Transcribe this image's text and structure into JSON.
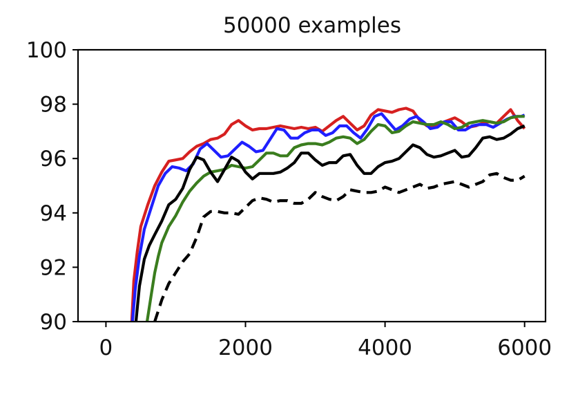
{
  "chart_data": {
    "type": "line",
    "title": "50000 examples",
    "xlabel": "",
    "ylabel": "",
    "xlim": [
      -400,
      6300
    ],
    "ylim": [
      90,
      100
    ],
    "xticks": [
      0,
      2000,
      4000,
      6000
    ],
    "xtick_labels": [
      "0",
      "2000",
      "4000",
      "6000"
    ],
    "yticks": [
      90,
      92,
      94,
      96,
      98,
      100
    ],
    "ytick_labels": [
      "90",
      "92",
      "94",
      "96",
      "98",
      "100"
    ],
    "grid": false,
    "series": [
      {
        "name": "red",
        "color": "#d62020",
        "dash": "solid",
        "points": [
          [
            370,
            90
          ],
          [
            400,
            91.5
          ],
          [
            450,
            92.6
          ],
          [
            500,
            93.5
          ],
          [
            600,
            94.3
          ],
          [
            700,
            95
          ],
          [
            800,
            95.5
          ],
          [
            900,
            95.9
          ],
          [
            1000,
            95.95
          ],
          [
            1100,
            96
          ],
          [
            1200,
            96.25
          ],
          [
            1300,
            96.45
          ],
          [
            1400,
            96.55
          ],
          [
            1500,
            96.7
          ],
          [
            1600,
            96.75
          ],
          [
            1700,
            96.9
          ],
          [
            1800,
            97.25
          ],
          [
            1900,
            97.4
          ],
          [
            2000,
            97.2
          ],
          [
            2100,
            97.05
          ],
          [
            2200,
            97.1
          ],
          [
            2300,
            97.1
          ],
          [
            2400,
            97.15
          ],
          [
            2500,
            97.2
          ],
          [
            2600,
            97.15
          ],
          [
            2700,
            97.1
          ],
          [
            2800,
            97.15
          ],
          [
            2900,
            97.1
          ],
          [
            3000,
            97.15
          ],
          [
            3100,
            97.0
          ],
          [
            3200,
            97.2
          ],
          [
            3300,
            97.4
          ],
          [
            3400,
            97.55
          ],
          [
            3500,
            97.3
          ],
          [
            3600,
            97.05
          ],
          [
            3700,
            97.2
          ],
          [
            3800,
            97.6
          ],
          [
            3900,
            97.8
          ],
          [
            4000,
            97.75
          ],
          [
            4100,
            97.7
          ],
          [
            4200,
            97.8
          ],
          [
            4300,
            97.85
          ],
          [
            4400,
            97.75
          ],
          [
            4500,
            97.4
          ],
          [
            4600,
            97.2
          ],
          [
            4700,
            97.15
          ],
          [
            4800,
            97.3
          ],
          [
            4900,
            97.4
          ],
          [
            5000,
            97.5
          ],
          [
            5100,
            97.35
          ],
          [
            5200,
            97.15
          ],
          [
            5300,
            97.2
          ],
          [
            5400,
            97.3
          ],
          [
            5500,
            97.35
          ],
          [
            5600,
            97.3
          ],
          [
            5700,
            97.55
          ],
          [
            5800,
            97.8
          ],
          [
            5900,
            97.4
          ],
          [
            6000,
            97.1
          ]
        ]
      },
      {
        "name": "blue",
        "color": "#1f1fff",
        "dash": "solid",
        "points": [
          [
            380,
            90
          ],
          [
            420,
            91.2
          ],
          [
            480,
            92.4
          ],
          [
            550,
            93.4
          ],
          [
            650,
            94.2
          ],
          [
            750,
            95
          ],
          [
            850,
            95.45
          ],
          [
            950,
            95.7
          ],
          [
            1050,
            95.65
          ],
          [
            1150,
            95.55
          ],
          [
            1250,
            95.8
          ],
          [
            1350,
            96.35
          ],
          [
            1450,
            96.55
          ],
          [
            1550,
            96.3
          ],
          [
            1650,
            96.05
          ],
          [
            1750,
            96.1
          ],
          [
            1850,
            96.35
          ],
          [
            1950,
            96.6
          ],
          [
            2050,
            96.45
          ],
          [
            2150,
            96.25
          ],
          [
            2250,
            96.3
          ],
          [
            2350,
            96.7
          ],
          [
            2450,
            97.1
          ],
          [
            2550,
            97.05
          ],
          [
            2650,
            96.75
          ],
          [
            2750,
            96.75
          ],
          [
            2850,
            96.95
          ],
          [
            2950,
            97.05
          ],
          [
            3050,
            97.05
          ],
          [
            3150,
            96.85
          ],
          [
            3250,
            96.95
          ],
          [
            3350,
            97.2
          ],
          [
            3450,
            97.2
          ],
          [
            3550,
            96.95
          ],
          [
            3650,
            96.75
          ],
          [
            3750,
            97.1
          ],
          [
            3850,
            97.55
          ],
          [
            3950,
            97.65
          ],
          [
            4050,
            97.35
          ],
          [
            4150,
            97.05
          ],
          [
            4250,
            97.2
          ],
          [
            4350,
            97.45
          ],
          [
            4450,
            97.55
          ],
          [
            4550,
            97.35
          ],
          [
            4650,
            97.1
          ],
          [
            4750,
            97.15
          ],
          [
            4850,
            97.35
          ],
          [
            4950,
            97.35
          ],
          [
            5050,
            97.05
          ],
          [
            5150,
            97.05
          ],
          [
            5250,
            97.2
          ],
          [
            5350,
            97.25
          ],
          [
            5450,
            97.25
          ],
          [
            5550,
            97.15
          ],
          [
            5650,
            97.3
          ],
          [
            5750,
            97.45
          ],
          [
            5850,
            97.55
          ],
          [
            5950,
            97.55
          ],
          [
            6000,
            97.6
          ]
        ]
      },
      {
        "name": "green",
        "color": "#3a7d1e",
        "dash": "solid",
        "points": [
          [
            590,
            90
          ],
          [
            650,
            91
          ],
          [
            700,
            91.8
          ],
          [
            750,
            92.4
          ],
          [
            800,
            92.9
          ],
          [
            900,
            93.5
          ],
          [
            1000,
            93.9
          ],
          [
            1100,
            94.4
          ],
          [
            1200,
            94.8
          ],
          [
            1300,
            95.1
          ],
          [
            1400,
            95.35
          ],
          [
            1500,
            95.5
          ],
          [
            1600,
            95.55
          ],
          [
            1700,
            95.6
          ],
          [
            1800,
            95.75
          ],
          [
            1900,
            95.7
          ],
          [
            2000,
            95.65
          ],
          [
            2100,
            95.7
          ],
          [
            2200,
            95.95
          ],
          [
            2300,
            96.2
          ],
          [
            2400,
            96.2
          ],
          [
            2500,
            96.1
          ],
          [
            2600,
            96.1
          ],
          [
            2700,
            96.4
          ],
          [
            2800,
            96.5
          ],
          [
            2900,
            96.55
          ],
          [
            3000,
            96.55
          ],
          [
            3100,
            96.5
          ],
          [
            3200,
            96.6
          ],
          [
            3300,
            96.75
          ],
          [
            3400,
            96.8
          ],
          [
            3500,
            96.75
          ],
          [
            3600,
            96.55
          ],
          [
            3700,
            96.7
          ],
          [
            3800,
            97.0
          ],
          [
            3900,
            97.25
          ],
          [
            4000,
            97.2
          ],
          [
            4100,
            96.95
          ],
          [
            4200,
            97.0
          ],
          [
            4300,
            97.2
          ],
          [
            4400,
            97.35
          ],
          [
            4500,
            97.3
          ],
          [
            4600,
            97.25
          ],
          [
            4700,
            97.25
          ],
          [
            4800,
            97.35
          ],
          [
            4900,
            97.25
          ],
          [
            5000,
            97.1
          ],
          [
            5100,
            97.15
          ],
          [
            5200,
            97.3
          ],
          [
            5300,
            97.35
          ],
          [
            5400,
            97.4
          ],
          [
            5500,
            97.35
          ],
          [
            5600,
            97.3
          ],
          [
            5700,
            97.35
          ],
          [
            5800,
            97.5
          ],
          [
            5900,
            97.55
          ],
          [
            6000,
            97.55
          ]
        ]
      },
      {
        "name": "black",
        "color": "#000000",
        "dash": "solid",
        "points": [
          [
            430,
            90
          ],
          [
            480,
            91.3
          ],
          [
            550,
            92.3
          ],
          [
            620,
            92.8
          ],
          [
            700,
            93.2
          ],
          [
            800,
            93.7
          ],
          [
            900,
            94.3
          ],
          [
            1000,
            94.5
          ],
          [
            1100,
            94.9
          ],
          [
            1200,
            95.6
          ],
          [
            1300,
            96.05
          ],
          [
            1400,
            95.95
          ],
          [
            1500,
            95.5
          ],
          [
            1600,
            95.15
          ],
          [
            1700,
            95.6
          ],
          [
            1800,
            96.05
          ],
          [
            1900,
            95.9
          ],
          [
            2000,
            95.5
          ],
          [
            2100,
            95.25
          ],
          [
            2200,
            95.45
          ],
          [
            2300,
            95.45
          ],
          [
            2400,
            95.45
          ],
          [
            2500,
            95.5
          ],
          [
            2600,
            95.65
          ],
          [
            2700,
            95.85
          ],
          [
            2800,
            96.2
          ],
          [
            2900,
            96.2
          ],
          [
            3000,
            95.95
          ],
          [
            3100,
            95.75
          ],
          [
            3200,
            95.85
          ],
          [
            3300,
            95.85
          ],
          [
            3400,
            96.1
          ],
          [
            3500,
            96.15
          ],
          [
            3600,
            95.75
          ],
          [
            3700,
            95.45
          ],
          [
            3800,
            95.45
          ],
          [
            3900,
            95.7
          ],
          [
            4000,
            95.85
          ],
          [
            4100,
            95.9
          ],
          [
            4200,
            96.0
          ],
          [
            4300,
            96.25
          ],
          [
            4400,
            96.5
          ],
          [
            4500,
            96.4
          ],
          [
            4600,
            96.15
          ],
          [
            4700,
            96.05
          ],
          [
            4800,
            96.1
          ],
          [
            4900,
            96.2
          ],
          [
            5000,
            96.3
          ],
          [
            5100,
            96.05
          ],
          [
            5200,
            96.1
          ],
          [
            5300,
            96.4
          ],
          [
            5400,
            96.75
          ],
          [
            5500,
            96.8
          ],
          [
            5600,
            96.7
          ],
          [
            5700,
            96.75
          ],
          [
            5800,
            96.9
          ],
          [
            5900,
            97.1
          ],
          [
            6000,
            97.2
          ]
        ]
      },
      {
        "name": "black-dashed",
        "color": "#000000",
        "dash": "dashed",
        "points": [
          [
            700,
            90
          ],
          [
            800,
            90.8
          ],
          [
            900,
            91.4
          ],
          [
            1000,
            91.8
          ],
          [
            1100,
            92.2
          ],
          [
            1200,
            92.5
          ],
          [
            1300,
            93.1
          ],
          [
            1400,
            93.85
          ],
          [
            1500,
            94.05
          ],
          [
            1600,
            94.05
          ],
          [
            1700,
            94.0
          ],
          [
            1800,
            94.0
          ],
          [
            1900,
            93.95
          ],
          [
            2000,
            94.2
          ],
          [
            2100,
            94.45
          ],
          [
            2200,
            94.55
          ],
          [
            2300,
            94.5
          ],
          [
            2400,
            94.4
          ],
          [
            2500,
            94.45
          ],
          [
            2600,
            94.45
          ],
          [
            2700,
            94.35
          ],
          [
            2800,
            94.35
          ],
          [
            2900,
            94.5
          ],
          [
            3000,
            94.75
          ],
          [
            3100,
            94.6
          ],
          [
            3200,
            94.5
          ],
          [
            3300,
            94.45
          ],
          [
            3400,
            94.6
          ],
          [
            3500,
            94.85
          ],
          [
            3600,
            94.8
          ],
          [
            3700,
            94.75
          ],
          [
            3800,
            94.75
          ],
          [
            3900,
            94.8
          ],
          [
            4000,
            94.95
          ],
          [
            4100,
            94.85
          ],
          [
            4200,
            94.75
          ],
          [
            4300,
            94.85
          ],
          [
            4400,
            94.95
          ],
          [
            4500,
            95.05
          ],
          [
            4600,
            94.9
          ],
          [
            4700,
            94.95
          ],
          [
            4800,
            95.05
          ],
          [
            4900,
            95.1
          ],
          [
            5000,
            95.15
          ],
          [
            5100,
            95.05
          ],
          [
            5200,
            94.95
          ],
          [
            5300,
            95.05
          ],
          [
            5400,
            95.15
          ],
          [
            5500,
            95.4
          ],
          [
            5600,
            95.45
          ],
          [
            5700,
            95.3
          ],
          [
            5800,
            95.2
          ],
          [
            5900,
            95.2
          ],
          [
            6000,
            95.35
          ]
        ]
      }
    ]
  }
}
